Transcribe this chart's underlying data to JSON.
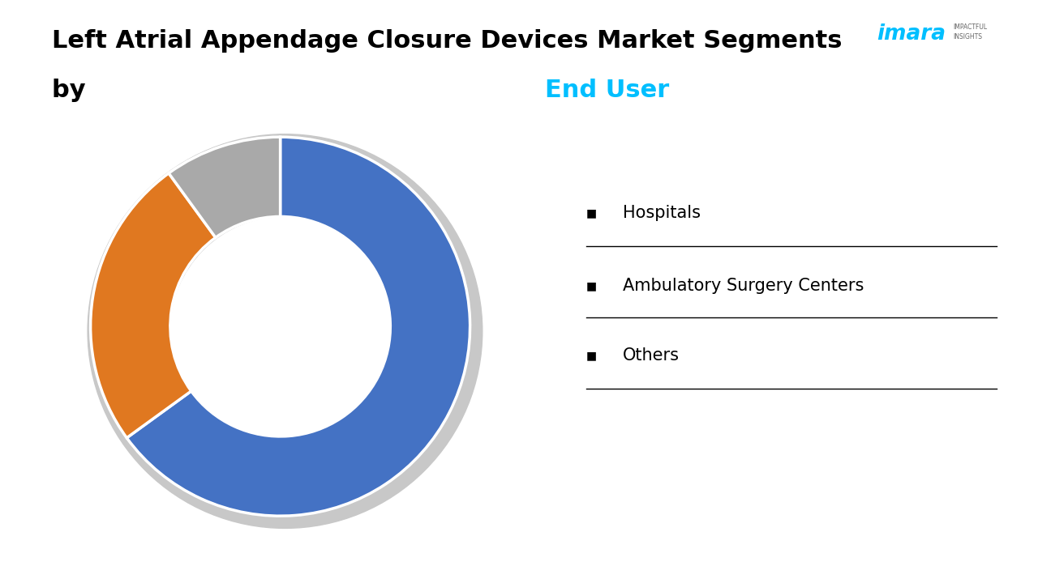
{
  "title_line1": "Left Atrial Appendage Closure Devices Market Segments",
  "title_line2_black": "by ",
  "title_line2_cyan": "End User",
  "segments": [
    "Hospitals",
    "Ambulatory Surgery Centers",
    "Others"
  ],
  "values": [
    65,
    25,
    10
  ],
  "colors": [
    "#4472C4",
    "#E07820",
    "#A9A9A9"
  ],
  "wedge_edge_color": "#FFFFFF",
  "wedge_edge_width": 2.5,
  "donut_width": 0.42,
  "start_angle": 90,
  "background_color": "#FFFFFF",
  "legend_labels": [
    "Hospitals",
    "Ambulatory Surgery Centers",
    "Others"
  ],
  "title_fontsize": 22,
  "legend_fontsize": 15,
  "cyan_color": "#00BFFF",
  "shadow_color": "#C8C8C8",
  "imarc_color": "#00BFFF",
  "imarc_small_color": "#666666"
}
